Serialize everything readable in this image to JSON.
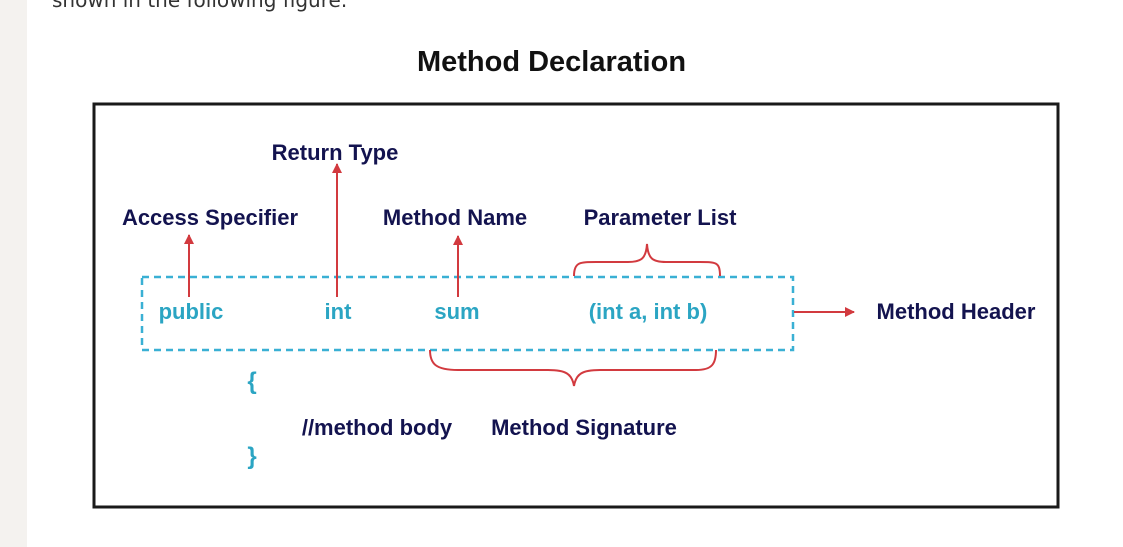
{
  "intro_text": "shown in the following figure.",
  "title": "Method Declaration",
  "labels": {
    "return_type": "Return Type",
    "access_specifier": "Access Specifier",
    "method_name": "Method Name",
    "parameter_list": "Parameter List",
    "method_header": "Method Header",
    "method_signature": "Method Signature"
  },
  "code": {
    "public": "public",
    "int": "int",
    "sum": "sum",
    "params": "(int a, int b)",
    "open_brace": "{",
    "body": "//method body",
    "close_brace": "}"
  },
  "colors": {
    "label": "#13134f",
    "code": "#2ba5c3",
    "arrow": "#d23a3f",
    "frame": "#1a1a1a",
    "dashed_box": "#3ab0d4"
  }
}
